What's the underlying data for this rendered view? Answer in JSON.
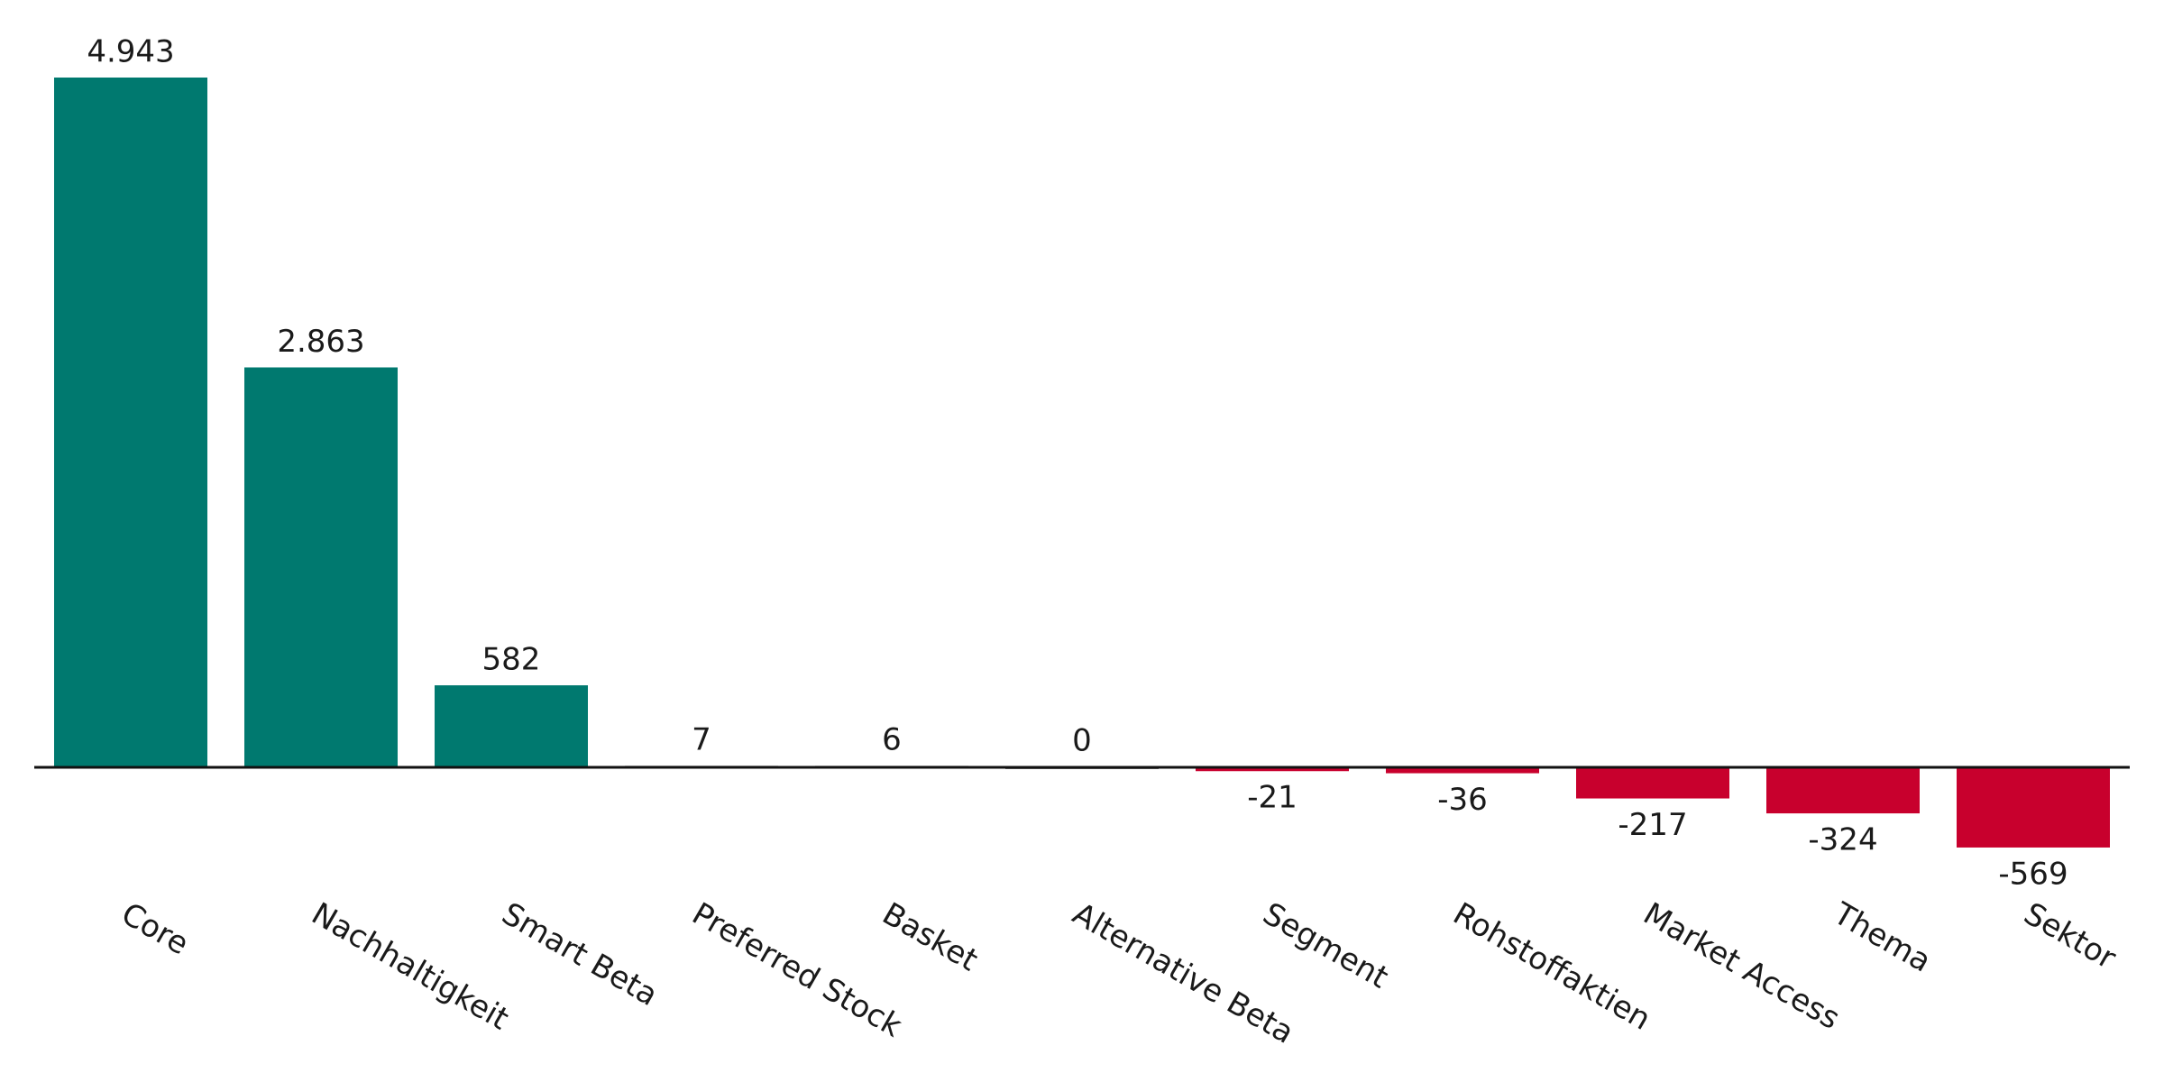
{
  "chart_data": {
    "type": "bar",
    "categories": [
      "Core",
      "Nachhaltigkeit",
      "Smart Beta",
      "Preferred Stock",
      "Basket",
      "Alternative Beta",
      "Segment",
      "Rohstoffaktien",
      "Market Access",
      "Thema",
      "Sektor"
    ],
    "values": [
      4943,
      2863,
      582,
      7,
      6,
      0,
      -21,
      -36,
      -217,
      -324,
      -569
    ],
    "value_labels": [
      "4.943",
      "2.863",
      "582",
      "7",
      "6",
      "0",
      "-21",
      "-36",
      "-217",
      "-324",
      "-569"
    ],
    "colors": [
      "#00796f",
      "#00796f",
      "#00796f",
      "#d9d9d9",
      "#d9d9d9",
      "#757575",
      "#c8002d",
      "#c8002d",
      "#c8002d",
      "#c8002d",
      "#c8002d"
    ]
  }
}
